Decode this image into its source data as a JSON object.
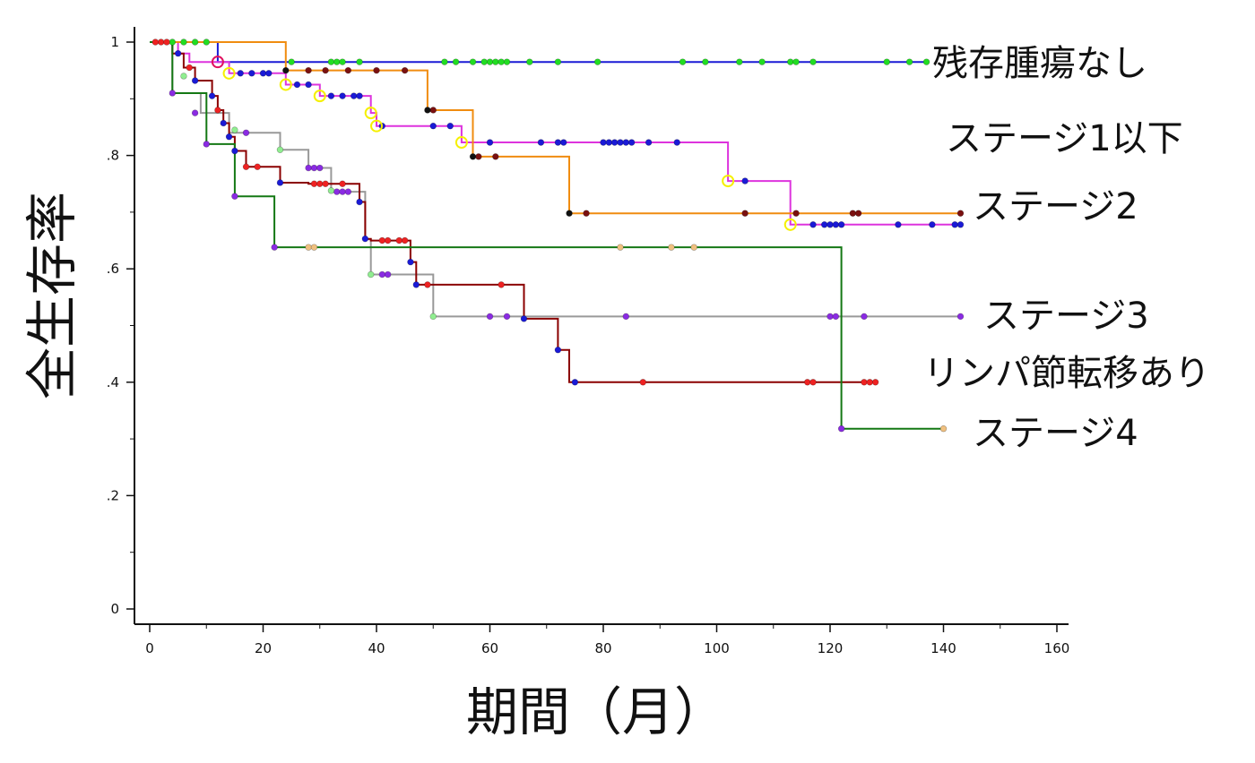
{
  "chart_data": {
    "type": "line",
    "subtype": "kaplan-meier step",
    "xlabel": "期間（月）",
    "ylabel": "全生存率",
    "xlim": [
      0,
      160
    ],
    "ylim": [
      0,
      1
    ],
    "x_ticks": [
      0,
      20,
      40,
      60,
      80,
      100,
      120,
      140,
      160
    ],
    "x_tick_labels": [
      "0",
      "20",
      "40",
      "60",
      "80",
      "100",
      "120",
      "140",
      "160"
    ],
    "y_ticks": [
      0,
      0.2,
      0.4,
      0.6,
      0.8,
      1
    ],
    "y_tick_labels": [
      "0",
      ".2",
      ".4",
      ".6",
      ".8",
      "1"
    ],
    "grid": false,
    "legend": "inline labels at right of each curve",
    "series": [
      {
        "name": "残存腫瘍なし",
        "color": "#1a1ad6",
        "marker_color": "#22dd22",
        "steps": [
          [
            0,
            1
          ],
          [
            12,
            1
          ],
          [
            12,
            0.965
          ],
          [
            137,
            0.965
          ]
        ],
        "censored": [
          4,
          6,
          8,
          10,
          25,
          32,
          33,
          34,
          37,
          52,
          54,
          57,
          59,
          60,
          61,
          62,
          63,
          67,
          72,
          79,
          94,
          98,
          104,
          108,
          113,
          114,
          117,
          130,
          134,
          137
        ]
      },
      {
        "name": "ステージ1以下",
        "color": "#dd33dd",
        "marker_color": "#1a1ad6",
        "steps": [
          [
            0,
            1
          ],
          [
            5,
            1
          ],
          [
            5,
            0.98
          ],
          [
            7,
            0.98
          ],
          [
            7,
            0.965
          ],
          [
            14,
            0.965
          ],
          [
            14,
            0.945
          ],
          [
            24,
            0.945
          ],
          [
            24,
            0.925
          ],
          [
            30,
            0.925
          ],
          [
            30,
            0.905
          ],
          [
            39,
            0.905
          ],
          [
            39,
            0.875
          ],
          [
            40,
            0.875
          ],
          [
            40,
            0.852
          ],
          [
            55,
            0.852
          ],
          [
            55,
            0.823
          ],
          [
            102,
            0.823
          ],
          [
            102,
            0.755
          ],
          [
            113,
            0.755
          ],
          [
            113,
            0.678
          ],
          [
            143,
            0.678
          ]
        ],
        "censored": [
          16,
          18,
          20,
          21,
          26,
          28,
          32,
          34,
          36,
          37,
          41,
          50,
          53,
          60,
          69,
          72,
          73,
          80,
          81,
          82,
          83,
          84,
          85,
          88,
          93,
          105,
          117,
          119,
          120,
          121,
          122,
          132,
          138,
          142,
          143
        ]
      },
      {
        "name": "ステージ2",
        "color": "#f08c10",
        "marker_color": "#7a1010",
        "steps": [
          [
            0,
            1
          ],
          [
            24,
            1
          ],
          [
            24,
            0.95
          ],
          [
            49,
            0.95
          ],
          [
            49,
            0.88
          ],
          [
            57,
            0.88
          ],
          [
            57,
            0.798
          ],
          [
            74,
            0.798
          ],
          [
            74,
            0.698
          ],
          [
            143,
            0.698
          ]
        ],
        "censored": [
          28,
          31,
          35,
          40,
          45,
          50,
          58,
          61,
          77,
          105,
          114,
          124,
          125,
          143
        ]
      },
      {
        "name": "ステージ3",
        "color": "#999999",
        "marker_color": "#8a2be2",
        "steps": [
          [
            0,
            1
          ],
          [
            4,
            1
          ],
          [
            4,
            0.91
          ],
          [
            9,
            0.91
          ],
          [
            9,
            0.875
          ],
          [
            14,
            0.875
          ],
          [
            14,
            0.84
          ],
          [
            23,
            0.84
          ],
          [
            23,
            0.81
          ],
          [
            28,
            0.81
          ],
          [
            28,
            0.778
          ],
          [
            32,
            0.778
          ],
          [
            32,
            0.736
          ],
          [
            38,
            0.736
          ],
          [
            38,
            0.652
          ],
          [
            39,
            0.652
          ],
          [
            39,
            0.59
          ],
          [
            50,
            0.59
          ],
          [
            50,
            0.516
          ],
          [
            143,
            0.516
          ]
        ],
        "censored": [
          17,
          28,
          29,
          30,
          33,
          34,
          35,
          41,
          42,
          60,
          63,
          84,
          120,
          121,
          126,
          143
        ]
      },
      {
        "name": "リンパ節転移あり",
        "color": "#8b0000",
        "marker_color": "#ee2222",
        "steps": [
          [
            0,
            1
          ],
          [
            4,
            1
          ],
          [
            4,
            0.98
          ],
          [
            6,
            0.98
          ],
          [
            6,
            0.955
          ],
          [
            8,
            0.955
          ],
          [
            8,
            0.932
          ],
          [
            11,
            0.932
          ],
          [
            11,
            0.905
          ],
          [
            12,
            0.905
          ],
          [
            12,
            0.88
          ],
          [
            13,
            0.88
          ],
          [
            13,
            0.857
          ],
          [
            14,
            0.857
          ],
          [
            14,
            0.833
          ],
          [
            15,
            0.833
          ],
          [
            15,
            0.808
          ],
          [
            17,
            0.808
          ],
          [
            17,
            0.78
          ],
          [
            23,
            0.78
          ],
          [
            23,
            0.752
          ],
          [
            28,
            0.752
          ],
          [
            28,
            0.75
          ],
          [
            37,
            0.75
          ],
          [
            37,
            0.718
          ],
          [
            38,
            0.718
          ],
          [
            38,
            0.653
          ],
          [
            39,
            0.653
          ],
          [
            39,
            0.65
          ],
          [
            46,
            0.65
          ],
          [
            46,
            0.612
          ],
          [
            47,
            0.612
          ],
          [
            47,
            0.572
          ],
          [
            66,
            0.572
          ],
          [
            66,
            0.512
          ],
          [
            72,
            0.512
          ],
          [
            72,
            0.457
          ],
          [
            74,
            0.457
          ],
          [
            74,
            0.4
          ],
          [
            128,
            0.4
          ]
        ],
        "censored": [
          1,
          2,
          3,
          19,
          29,
          30,
          31,
          34,
          41,
          42,
          44,
          45,
          49,
          62,
          87,
          116,
          117,
          126,
          127,
          128
        ]
      },
      {
        "name": "ステージ4",
        "color": "#147814",
        "marker_color": "#f0c080",
        "steps": [
          [
            0,
            1
          ],
          [
            4,
            1
          ],
          [
            4,
            0.91
          ],
          [
            10,
            0.91
          ],
          [
            10,
            0.82
          ],
          [
            15,
            0.82
          ],
          [
            15,
            0.728
          ],
          [
            22,
            0.728
          ],
          [
            22,
            0.638
          ],
          [
            122,
            0.638
          ],
          [
            122,
            0.318
          ],
          [
            140,
            0.318
          ]
        ],
        "censored": [
          28,
          29,
          83,
          92,
          96,
          140
        ]
      }
    ],
    "event_markers": [
      {
        "x": 4,
        "y": 0.91,
        "color": "#8a2be2"
      },
      {
        "x": 10,
        "y": 0.82,
        "color": "#8a2be2"
      },
      {
        "x": 15,
        "y": 0.728,
        "color": "#8a2be2"
      },
      {
        "x": 22,
        "y": 0.638,
        "color": "#8a2be2"
      },
      {
        "x": 122,
        "y": 0.318,
        "color": "#8a2be2"
      },
      {
        "x": 6,
        "y": 0.94,
        "color": "#90ee90"
      },
      {
        "x": 15,
        "y": 0.845,
        "color": "#90ee90"
      },
      {
        "x": 23,
        "y": 0.81,
        "color": "#90ee90"
      },
      {
        "x": 32,
        "y": 0.738,
        "color": "#90ee90"
      },
      {
        "x": 39,
        "y": 0.59,
        "color": "#90ee90"
      },
      {
        "x": 50,
        "y": 0.516,
        "color": "#90ee90"
      },
      {
        "x": 8,
        "y": 0.875,
        "color": "#8a2be2"
      },
      {
        "x": 5,
        "y": 0.98,
        "color": "#1a1ad6"
      },
      {
        "x": 8,
        "y": 0.932,
        "color": "#1a1ad6"
      },
      {
        "x": 11,
        "y": 0.905,
        "color": "#1a1ad6"
      },
      {
        "x": 13,
        "y": 0.857,
        "color": "#1a1ad6"
      },
      {
        "x": 14,
        "y": 0.833,
        "color": "#1a1ad6"
      },
      {
        "x": 15,
        "y": 0.808,
        "color": "#1a1ad6"
      },
      {
        "x": 23,
        "y": 0.752,
        "color": "#1a1ad6"
      },
      {
        "x": 37,
        "y": 0.718,
        "color": "#1a1ad6"
      },
      {
        "x": 38,
        "y": 0.653,
        "color": "#1a1ad6"
      },
      {
        "x": 46,
        "y": 0.612,
        "color": "#1a1ad6"
      },
      {
        "x": 47,
        "y": 0.572,
        "color": "#1a1ad6"
      },
      {
        "x": 66,
        "y": 0.512,
        "color": "#1a1ad6"
      },
      {
        "x": 72,
        "y": 0.457,
        "color": "#1a1ad6"
      },
      {
        "x": 75,
        "y": 0.4,
        "color": "#1a1ad6"
      },
      {
        "x": 7,
        "y": 0.955,
        "color": "#ee2222"
      },
      {
        "x": 12,
        "y": 0.88,
        "color": "#ee2222"
      },
      {
        "x": 17,
        "y": 0.78,
        "color": "#ee2222"
      },
      {
        "x": 57,
        "y": 0.798,
        "color": "#111111"
      },
      {
        "x": 49,
        "y": 0.88,
        "color": "#111111"
      },
      {
        "x": 74,
        "y": 0.698,
        "color": "#111111"
      },
      {
        "x": 24,
        "y": 0.95,
        "color": "#111111"
      }
    ],
    "highlight_rings": [
      {
        "x": 12,
        "y": 0.965,
        "color": "#e0115f"
      },
      {
        "x": 14,
        "y": 0.945,
        "color": "#f5f000"
      },
      {
        "x": 24,
        "y": 0.925,
        "color": "#f5f000"
      },
      {
        "x": 30,
        "y": 0.905,
        "color": "#f5f000"
      },
      {
        "x": 39,
        "y": 0.875,
        "color": "#f5f000"
      },
      {
        "x": 40,
        "y": 0.852,
        "color": "#f5f000"
      },
      {
        "x": 55,
        "y": 0.823,
        "color": "#f5f000"
      },
      {
        "x": 102,
        "y": 0.755,
        "color": "#f5f000"
      },
      {
        "x": 113,
        "y": 0.678,
        "color": "#f5f000"
      }
    ]
  }
}
